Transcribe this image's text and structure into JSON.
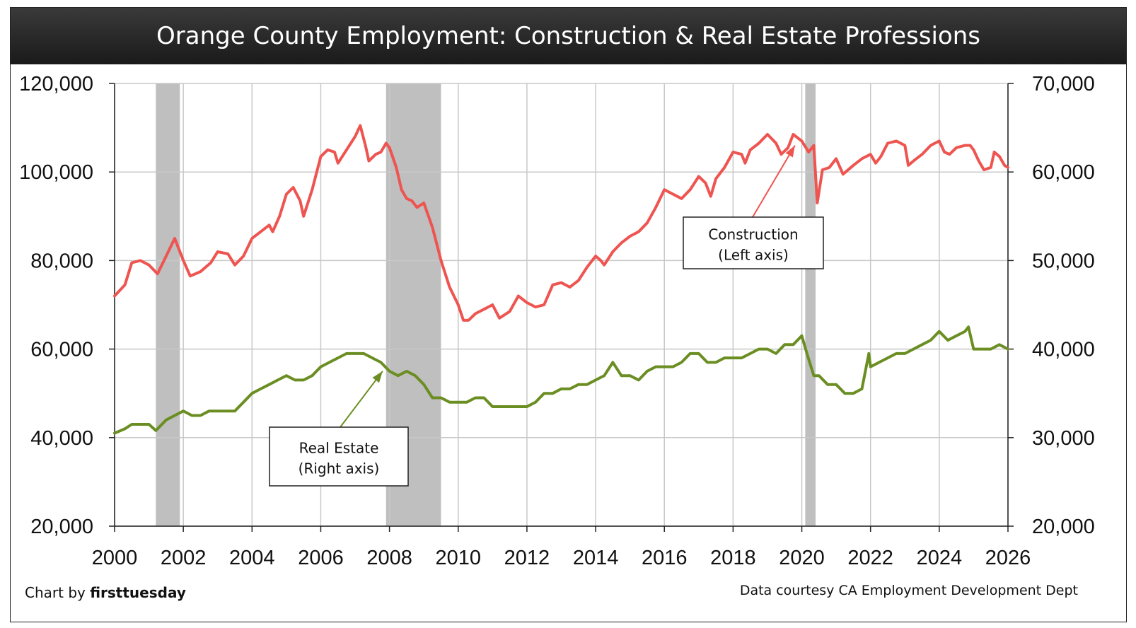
{
  "chart_data": {
    "type": "line",
    "title": "Orange County Employment: Construction & Real Estate Professions",
    "x_range": [
      2000,
      2026
    ],
    "x_ticks": [
      "2000",
      "2002",
      "2004",
      "2006",
      "2008",
      "2010",
      "2012",
      "2014",
      "2016",
      "2018",
      "2020",
      "2022",
      "2024",
      "2026"
    ],
    "y_left": {
      "range": [
        20000,
        120000
      ],
      "ticks": [
        "20,000",
        "40,000",
        "60,000",
        "80,000",
        "100,000",
        "120,000"
      ]
    },
    "y_right": {
      "range": [
        20000,
        70000
      ],
      "ticks": [
        "20,000",
        "30,000",
        "40,000",
        "50,000",
        "60,000",
        "70,000"
      ]
    },
    "grid": true,
    "recessions": [
      [
        2001.2,
        2001.9
      ],
      [
        2007.9,
        2009.5
      ],
      [
        2020.1,
        2020.4
      ]
    ],
    "series": [
      {
        "name": "Construction",
        "axis": "left",
        "color": "#ee5450",
        "points": [
          [
            2000.0,
            72000
          ],
          [
            2000.3,
            74500
          ],
          [
            2000.5,
            79500
          ],
          [
            2000.75,
            80000
          ],
          [
            2001.0,
            79000
          ],
          [
            2001.25,
            77000
          ],
          [
            2001.5,
            81000
          ],
          [
            2001.75,
            85000
          ],
          [
            2002.0,
            80000
          ],
          [
            2002.2,
            76500
          ],
          [
            2002.5,
            77500
          ],
          [
            2002.8,
            79500
          ],
          [
            2003.0,
            82000
          ],
          [
            2003.3,
            81500
          ],
          [
            2003.5,
            79000
          ],
          [
            2003.75,
            81000
          ],
          [
            2004.0,
            85000
          ],
          [
            2004.25,
            86500
          ],
          [
            2004.5,
            88000
          ],
          [
            2004.6,
            86500
          ],
          [
            2004.8,
            90000
          ],
          [
            2005.0,
            95000
          ],
          [
            2005.2,
            96500
          ],
          [
            2005.4,
            93500
          ],
          [
            2005.5,
            90000
          ],
          [
            2005.75,
            96000
          ],
          [
            2006.0,
            103500
          ],
          [
            2006.2,
            105000
          ],
          [
            2006.4,
            104500
          ],
          [
            2006.5,
            102000
          ],
          [
            2006.75,
            105000
          ],
          [
            2007.0,
            108000
          ],
          [
            2007.15,
            110500
          ],
          [
            2007.3,
            106000
          ],
          [
            2007.4,
            102500
          ],
          [
            2007.6,
            104000
          ],
          [
            2007.75,
            104500
          ],
          [
            2007.9,
            106500
          ],
          [
            2008.0,
            105500
          ],
          [
            2008.2,
            101000
          ],
          [
            2008.35,
            96000
          ],
          [
            2008.5,
            94000
          ],
          [
            2008.65,
            93500
          ],
          [
            2008.8,
            92000
          ],
          [
            2009.0,
            93000
          ],
          [
            2009.25,
            87500
          ],
          [
            2009.5,
            80000
          ],
          [
            2009.75,
            74000
          ],
          [
            2010.0,
            70000
          ],
          [
            2010.15,
            66500
          ],
          [
            2010.3,
            66500
          ],
          [
            2010.5,
            68000
          ],
          [
            2010.75,
            69000
          ],
          [
            2011.0,
            70000
          ],
          [
            2011.2,
            67000
          ],
          [
            2011.5,
            68500
          ],
          [
            2011.75,
            72000
          ],
          [
            2012.0,
            70500
          ],
          [
            2012.25,
            69500
          ],
          [
            2012.5,
            70000
          ],
          [
            2012.75,
            74500
          ],
          [
            2013.0,
            75000
          ],
          [
            2013.25,
            74000
          ],
          [
            2013.5,
            75500
          ],
          [
            2013.75,
            78500
          ],
          [
            2014.0,
            81000
          ],
          [
            2014.15,
            80000
          ],
          [
            2014.25,
            79000
          ],
          [
            2014.5,
            82000
          ],
          [
            2014.75,
            84000
          ],
          [
            2015.0,
            85500
          ],
          [
            2015.25,
            86500
          ],
          [
            2015.5,
            88500
          ],
          [
            2015.75,
            92000
          ],
          [
            2016.0,
            96000
          ],
          [
            2016.25,
            95000
          ],
          [
            2016.5,
            94000
          ],
          [
            2016.75,
            96000
          ],
          [
            2017.0,
            99000
          ],
          [
            2017.2,
            97500
          ],
          [
            2017.35,
            94500
          ],
          [
            2017.5,
            98500
          ],
          [
            2017.75,
            101000
          ],
          [
            2018.0,
            104500
          ],
          [
            2018.25,
            104000
          ],
          [
            2018.35,
            102000
          ],
          [
            2018.5,
            105000
          ],
          [
            2018.75,
            106500
          ],
          [
            2019.0,
            108500
          ],
          [
            2019.25,
            106500
          ],
          [
            2019.4,
            104000
          ],
          [
            2019.6,
            105500
          ],
          [
            2019.75,
            108500
          ],
          [
            2020.0,
            107000
          ],
          [
            2020.2,
            104500
          ],
          [
            2020.35,
            106000
          ],
          [
            2020.45,
            93000
          ],
          [
            2020.6,
            100500
          ],
          [
            2020.8,
            101000
          ],
          [
            2021.0,
            103000
          ],
          [
            2021.2,
            99500
          ],
          [
            2021.5,
            101500
          ],
          [
            2021.75,
            103000
          ],
          [
            2022.0,
            104000
          ],
          [
            2022.15,
            102000
          ],
          [
            2022.3,
            103500
          ],
          [
            2022.5,
            106500
          ],
          [
            2022.75,
            107000
          ],
          [
            2023.0,
            106000
          ],
          [
            2023.1,
            101500
          ],
          [
            2023.25,
            102500
          ],
          [
            2023.5,
            104000
          ],
          [
            2023.75,
            106000
          ],
          [
            2024.0,
            107000
          ],
          [
            2024.15,
            104500
          ],
          [
            2024.3,
            104000
          ],
          [
            2024.5,
            105500
          ],
          [
            2024.75,
            106000
          ],
          [
            2024.9,
            106000
          ],
          [
            2025.0,
            105000
          ],
          [
            2025.15,
            102500
          ],
          [
            2025.3,
            100500
          ],
          [
            2025.5,
            101000
          ],
          [
            2025.6,
            104500
          ],
          [
            2025.75,
            103500
          ],
          [
            2025.9,
            101500
          ],
          [
            2026.0,
            101000
          ]
        ]
      },
      {
        "name": "Real Estate",
        "axis": "right",
        "color": "#6b8e23",
        "points": [
          [
            2000.0,
            30500
          ],
          [
            2000.3,
            31000
          ],
          [
            2000.5,
            31500
          ],
          [
            2000.75,
            31500
          ],
          [
            2001.0,
            31500
          ],
          [
            2001.2,
            30800
          ],
          [
            2001.5,
            32000
          ],
          [
            2001.75,
            32500
          ],
          [
            2002.0,
            33000
          ],
          [
            2002.25,
            32500
          ],
          [
            2002.5,
            32500
          ],
          [
            2002.75,
            33000
          ],
          [
            2003.0,
            33000
          ],
          [
            2003.25,
            33000
          ],
          [
            2003.5,
            33000
          ],
          [
            2003.75,
            34000
          ],
          [
            2004.0,
            35000
          ],
          [
            2004.25,
            35500
          ],
          [
            2004.5,
            36000
          ],
          [
            2004.75,
            36500
          ],
          [
            2005.0,
            37000
          ],
          [
            2005.25,
            36500
          ],
          [
            2005.5,
            36500
          ],
          [
            2005.75,
            37000
          ],
          [
            2006.0,
            38000
          ],
          [
            2006.25,
            38500
          ],
          [
            2006.5,
            39000
          ],
          [
            2006.75,
            39500
          ],
          [
            2007.0,
            39500
          ],
          [
            2007.25,
            39500
          ],
          [
            2007.5,
            39000
          ],
          [
            2007.75,
            38500
          ],
          [
            2008.0,
            37500
          ],
          [
            2008.25,
            37000
          ],
          [
            2008.5,
            37500
          ],
          [
            2008.75,
            37000
          ],
          [
            2009.0,
            36000
          ],
          [
            2009.25,
            34500
          ],
          [
            2009.5,
            34500
          ],
          [
            2009.75,
            34000
          ],
          [
            2010.0,
            34000
          ],
          [
            2010.25,
            34000
          ],
          [
            2010.5,
            34500
          ],
          [
            2010.75,
            34500
          ],
          [
            2011.0,
            33500
          ],
          [
            2011.25,
            33500
          ],
          [
            2011.5,
            33500
          ],
          [
            2011.75,
            33500
          ],
          [
            2012.0,
            33500
          ],
          [
            2012.25,
            34000
          ],
          [
            2012.5,
            35000
          ],
          [
            2012.75,
            35000
          ],
          [
            2013.0,
            35500
          ],
          [
            2013.25,
            35500
          ],
          [
            2013.5,
            36000
          ],
          [
            2013.75,
            36000
          ],
          [
            2014.0,
            36500
          ],
          [
            2014.25,
            37000
          ],
          [
            2014.5,
            38500
          ],
          [
            2014.75,
            37000
          ],
          [
            2015.0,
            37000
          ],
          [
            2015.25,
            36500
          ],
          [
            2015.5,
            37500
          ],
          [
            2015.75,
            38000
          ],
          [
            2016.0,
            38000
          ],
          [
            2016.25,
            38000
          ],
          [
            2016.5,
            38500
          ],
          [
            2016.75,
            39500
          ],
          [
            2017.0,
            39500
          ],
          [
            2017.25,
            38500
          ],
          [
            2017.5,
            38500
          ],
          [
            2017.75,
            39000
          ],
          [
            2018.0,
            39000
          ],
          [
            2018.25,
            39000
          ],
          [
            2018.5,
            39500
          ],
          [
            2018.75,
            40000
          ],
          [
            2019.0,
            40000
          ],
          [
            2019.25,
            39500
          ],
          [
            2019.5,
            40500
          ],
          [
            2019.75,
            40500
          ],
          [
            2020.0,
            41500
          ],
          [
            2020.15,
            39500
          ],
          [
            2020.35,
            37000
          ],
          [
            2020.5,
            37000
          ],
          [
            2020.75,
            36000
          ],
          [
            2021.0,
            36000
          ],
          [
            2021.25,
            35000
          ],
          [
            2021.5,
            35000
          ],
          [
            2021.75,
            35500
          ],
          [
            2021.95,
            39500
          ],
          [
            2022.0,
            38000
          ],
          [
            2022.25,
            38500
          ],
          [
            2022.5,
            39000
          ],
          [
            2022.75,
            39500
          ],
          [
            2023.0,
            39500
          ],
          [
            2023.25,
            40000
          ],
          [
            2023.5,
            40500
          ],
          [
            2023.75,
            41000
          ],
          [
            2024.0,
            42000
          ],
          [
            2024.25,
            41000
          ],
          [
            2024.5,
            41500
          ],
          [
            2024.75,
            42000
          ],
          [
            2024.85,
            42500
          ],
          [
            2025.0,
            40000
          ],
          [
            2025.25,
            40000
          ],
          [
            2025.5,
            40000
          ],
          [
            2025.75,
            40500
          ],
          [
            2026.0,
            40000
          ]
        ]
      }
    ],
    "annotations": [
      {
        "label": "Construction",
        "sublabel": "(Left axis)",
        "target_x": 2019.8,
        "target_y": 106000,
        "axis": "left"
      },
      {
        "label": "Real Estate",
        "sublabel": "(Right axis)",
        "target_x": 2007.8,
        "target_y": 37500,
        "axis": "right"
      }
    ]
  },
  "footer": {
    "credit_prefix": "Chart by ",
    "credit_brand": "firsttuesday",
    "source": "Data courtesy CA Employment Development Dept"
  }
}
